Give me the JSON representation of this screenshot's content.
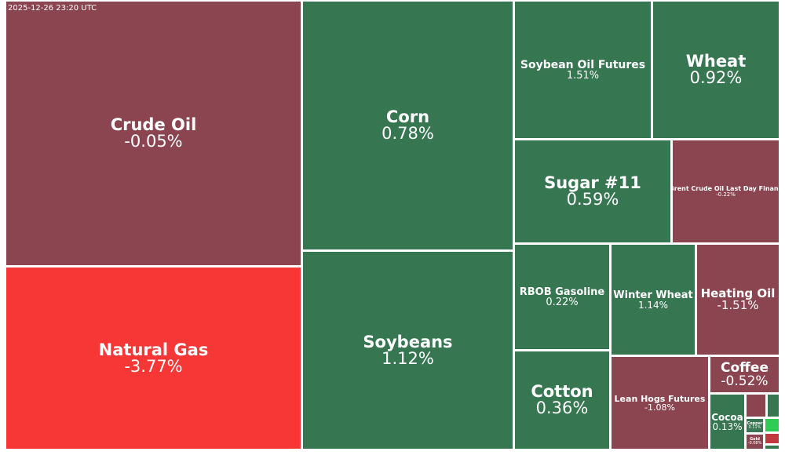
{
  "timestamp": "2025-12-26 23:20 UTC",
  "colors": {
    "down": "#8b4550",
    "up": "#367651",
    "strong_down": "#f73636",
    "strong_up": "#2ecc55",
    "mid_down": "#c0393f",
    "border": "#ffffff"
  },
  "chart_data": {
    "type": "treemap",
    "tiles": [
      {
        "name": "Crude Oil",
        "change": "-0.05%",
        "color": "#8b4550"
      },
      {
        "name": "Natural Gas",
        "change": "-3.77%",
        "color": "#f73636"
      },
      {
        "name": "Corn",
        "change": "0.78%",
        "color": "#367651"
      },
      {
        "name": "Soybeans",
        "change": "1.12%",
        "color": "#367651"
      },
      {
        "name": "Soybean Oil Futures",
        "change": "1.51%",
        "color": "#367651"
      },
      {
        "name": "Wheat",
        "change": "0.92%",
        "color": "#367651"
      },
      {
        "name": "Sugar #11",
        "change": "0.59%",
        "color": "#367651"
      },
      {
        "name": "Brent Crude Oil Last Day Financ",
        "change": "-0.22%",
        "color": "#8b4550"
      },
      {
        "name": "RBOB Gasoline",
        "change": "0.22%",
        "color": "#367651"
      },
      {
        "name": "Winter Wheat",
        "change": "1.14%",
        "color": "#367651"
      },
      {
        "name": "Heating Oil",
        "change": "-1.51%",
        "color": "#8b4550"
      },
      {
        "name": "Cotton",
        "change": "0.36%",
        "color": "#367651"
      },
      {
        "name": "Lean Hogs Futures",
        "change": "-1.08%",
        "color": "#8b4550"
      },
      {
        "name": "Coffee",
        "change": "-0.52%",
        "color": "#8b4550"
      },
      {
        "name": "Cocoa",
        "change": "0.13%",
        "color": "#367651"
      },
      {
        "name": "",
        "change": "",
        "color": "#8b4550"
      },
      {
        "name": "",
        "change": "",
        "color": "#367651"
      },
      {
        "name": "Copper",
        "change": "0.11%",
        "color": "#367651"
      },
      {
        "name": "",
        "change": "",
        "color": "#2ecc55"
      },
      {
        "name": "Gold",
        "change": "-0.08%",
        "color": "#8b4550"
      },
      {
        "name": "",
        "change": "",
        "color": "#c0393f"
      },
      {
        "name": "",
        "change": "",
        "color": "#367651"
      }
    ]
  }
}
